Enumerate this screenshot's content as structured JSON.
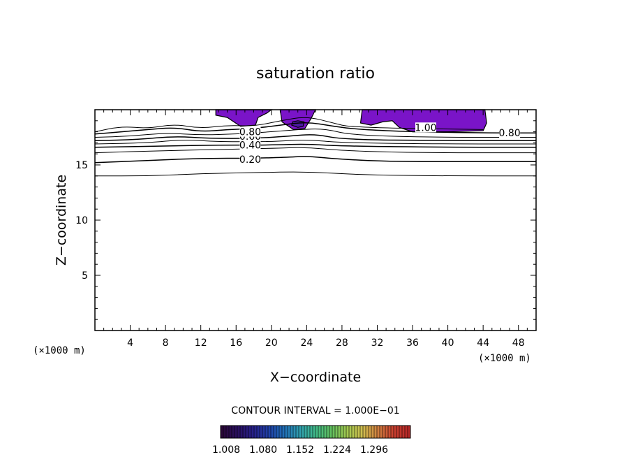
{
  "chart_data": {
    "type": "contour",
    "title": "saturation ratio",
    "xlabel": "X−coordinate",
    "ylabel": "Z−coordinate",
    "x_unit": "(×1000 m)",
    "xlim": [
      0,
      50
    ],
    "ylim": [
      0,
      20
    ],
    "x_ticks": [
      "4",
      "8",
      "12",
      "16",
      "20",
      "24",
      "28",
      "32",
      "36",
      "40",
      "44",
      "48"
    ],
    "y_ticks": [
      "5",
      "10",
      "15"
    ],
    "contour_interval": "CONTOUR INTERVAL = 1.000E−01",
    "contour_labels": [
      {
        "text": "0.20",
        "x": 17.6,
        "z": 15.5
      },
      {
        "text": "0.40",
        "x": 17.6,
        "z": 16.8
      },
      {
        "text": "0.60",
        "x": 17.6,
        "z": 17.6
      },
      {
        "text": "0.80",
        "x": 17.6,
        "z": 18.0
      },
      {
        "text": "1.00",
        "x": 37.5,
        "z": 18.4
      },
      {
        "text": "0.80",
        "x": 47.0,
        "z": 17.9
      }
    ],
    "contours": [
      {
        "level": 0.1,
        "points": [
          [
            0,
            14.0
          ],
          [
            6,
            14.0
          ],
          [
            12,
            14.2
          ],
          [
            18,
            14.3
          ],
          [
            24,
            14.4
          ],
          [
            30,
            14.1
          ],
          [
            40,
            14.0
          ],
          [
            50,
            14.0
          ]
        ]
      },
      {
        "level": 0.2,
        "points": [
          [
            0,
            15.2
          ],
          [
            6,
            15.4
          ],
          [
            12,
            15.6
          ],
          [
            18,
            15.6
          ],
          [
            22,
            15.7
          ],
          [
            24,
            15.8
          ],
          [
            28,
            15.5
          ],
          [
            34,
            15.3
          ],
          [
            40,
            15.3
          ],
          [
            50,
            15.3
          ]
        ]
      },
      {
        "level": 0.3,
        "points": [
          [
            0,
            16.1
          ],
          [
            8,
            16.3
          ],
          [
            14,
            16.4
          ],
          [
            20,
            16.5
          ],
          [
            24,
            16.6
          ],
          [
            28,
            16.3
          ],
          [
            36,
            16.1
          ],
          [
            50,
            16.1
          ]
        ]
      },
      {
        "level": 0.4,
        "points": [
          [
            0,
            16.6
          ],
          [
            8,
            16.7
          ],
          [
            14,
            16.8
          ],
          [
            20,
            16.8
          ],
          [
            24,
            16.9
          ],
          [
            28,
            16.7
          ],
          [
            40,
            16.6
          ],
          [
            50,
            16.6
          ]
        ]
      },
      {
        "level": 0.5,
        "points": [
          [
            0,
            16.9
          ],
          [
            6,
            17.0
          ],
          [
            10,
            17.3
          ],
          [
            14,
            17.1
          ],
          [
            20,
            17.1
          ],
          [
            24,
            17.3
          ],
          [
            28,
            17.0
          ],
          [
            40,
            16.9
          ],
          [
            50,
            16.9
          ]
        ]
      },
      {
        "level": 0.6,
        "points": [
          [
            0,
            17.2
          ],
          [
            5,
            17.3
          ],
          [
            9,
            17.6
          ],
          [
            13,
            17.4
          ],
          [
            18,
            17.4
          ],
          [
            22,
            17.6
          ],
          [
            25,
            17.8
          ],
          [
            28,
            17.3
          ],
          [
            40,
            17.2
          ],
          [
            50,
            17.2
          ]
        ]
      },
      {
        "level": 0.7,
        "points": [
          [
            0,
            17.5
          ],
          [
            4,
            17.6
          ],
          [
            8,
            17.9
          ],
          [
            12,
            17.7
          ],
          [
            16,
            17.8
          ],
          [
            20,
            18.0
          ],
          [
            23,
            18.2
          ],
          [
            26,
            18.3
          ],
          [
            29,
            17.7
          ],
          [
            38,
            17.5
          ],
          [
            50,
            17.5
          ]
        ]
      },
      {
        "level": 0.8,
        "points": [
          [
            0,
            17.8
          ],
          [
            3,
            18.0
          ],
          [
            6,
            18.2
          ],
          [
            9,
            18.4
          ],
          [
            12,
            18.0
          ],
          [
            15,
            18.2
          ],
          [
            18,
            18.3
          ],
          [
            21,
            18.6
          ],
          [
            24,
            18.9
          ],
          [
            27,
            18.5
          ],
          [
            30,
            18.2
          ],
          [
            36,
            18.0
          ],
          [
            44,
            17.9
          ],
          [
            50,
            17.9
          ]
        ]
      },
      {
        "level": 0.9,
        "points": [
          [
            0,
            18.0
          ],
          [
            3,
            18.5
          ],
          [
            6,
            18.3
          ],
          [
            9,
            18.7
          ],
          [
            12,
            18.3
          ],
          [
            15,
            18.6
          ],
          [
            18,
            18.5
          ],
          [
            21,
            19.0
          ],
          [
            24,
            19.4
          ],
          [
            27,
            18.8
          ],
          [
            29,
            18.4
          ],
          [
            44,
            18.2
          ]
        ]
      }
    ],
    "filled_regions": [
      {
        "level": "1.00",
        "color": "#7a14c8",
        "points": [
          [
            13.7,
            20
          ],
          [
            13.7,
            19.5
          ],
          [
            15,
            19.3
          ],
          [
            16.5,
            18.5
          ],
          [
            18.2,
            18.6
          ],
          [
            18.5,
            19.3
          ],
          [
            19.5,
            19.7
          ],
          [
            20,
            20
          ]
        ]
      },
      {
        "level": "1.00",
        "color": "#7a14c8",
        "points": [
          [
            21,
            20
          ],
          [
            21.2,
            18.9
          ],
          [
            22.5,
            18.2
          ],
          [
            23.8,
            18.3
          ],
          [
            24.5,
            19.2
          ],
          [
            25,
            20
          ]
        ]
      },
      {
        "level": "1.00",
        "color": "#7a14c8",
        "points": [
          [
            30.3,
            20
          ],
          [
            30.1,
            18.8
          ],
          [
            31.3,
            18.6
          ],
          [
            32.6,
            18.9
          ],
          [
            33.7,
            19.0
          ],
          [
            34.5,
            18.4
          ],
          [
            36,
            18.0
          ],
          [
            40,
            18.0
          ],
          [
            44,
            18.1
          ],
          [
            44.4,
            18.8
          ],
          [
            44.2,
            20
          ]
        ]
      },
      {
        "level": "max",
        "color": "#4b1aa0",
        "points": [
          [
            22.3,
            18.6
          ],
          [
            23.0,
            18.4
          ],
          [
            23.6,
            18.5
          ],
          [
            23.7,
            18.9
          ],
          [
            23.0,
            19.0
          ],
          [
            22.4,
            18.9
          ]
        ]
      }
    ],
    "colorbar": {
      "ticks": [
        "1.008",
        "1.080",
        "1.152",
        "1.224",
        "1.296"
      ],
      "colors": [
        "#2a0838",
        "#2a1060",
        "#28208a",
        "#2040a8",
        "#2070b8",
        "#30a0b0",
        "#40b888",
        "#60c060",
        "#a0c850",
        "#d0c050",
        "#d08040",
        "#c84030",
        "#b82828"
      ]
    }
  }
}
